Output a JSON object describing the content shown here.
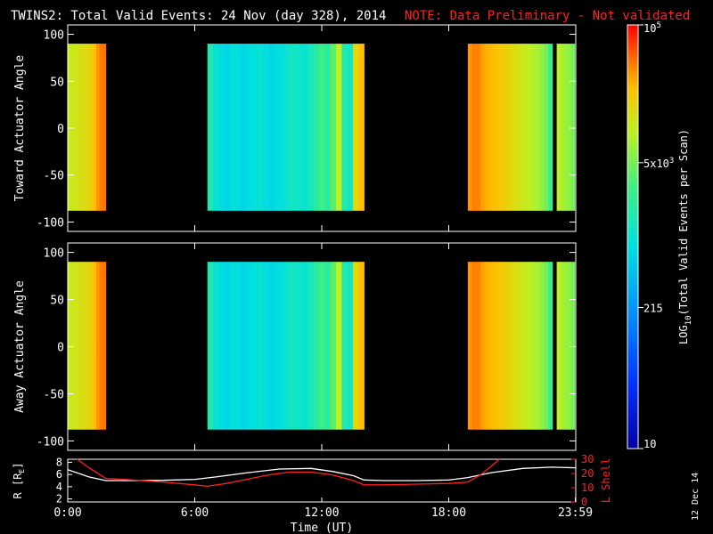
{
  "header": {
    "title": "TWINS2: Total Valid Events: 24 Nov (day 328), 2014",
    "note": "NOTE: Data Preliminary - Not validated",
    "note_color": "#ff2020"
  },
  "chart_data": [
    {
      "type": "heatmap",
      "ylabel": "Toward Actuator Angle",
      "ylim": [
        -110,
        110
      ],
      "yticks": [
        "100",
        "50",
        "0",
        "-50",
        "-100"
      ],
      "ytick_values": [
        100,
        50,
        0,
        -50,
        -100
      ],
      "xlim": [
        0,
        24
      ],
      "angle_range": [
        -88,
        90
      ],
      "data_segments": [
        {
          "start_hr": 0.0,
          "end_hr": 1.8,
          "profile": [
            4.05,
            4.05,
            4.08,
            4.12,
            4.15,
            4.18,
            4.22,
            4.3,
            4.4,
            4.55,
            4.62,
            4.65
          ]
        },
        {
          "start_hr": 6.6,
          "end_hr": 14.0,
          "profile": [
            3.2,
            3.0,
            2.9,
            2.85,
            2.95,
            2.9,
            2.85,
            2.9,
            2.95,
            3.0,
            2.9,
            2.85,
            2.9,
            2.95,
            3.05,
            3.1,
            3.05,
            3.0,
            3.15,
            3.3,
            3.45,
            3.3,
            3.6,
            4.0,
            3.2,
            3.1,
            4.2,
            4.4
          ]
        },
        {
          "start_hr": 18.9,
          "end_hr": 22.9,
          "profile": [
            4.55,
            4.62,
            4.6,
            4.5,
            4.45,
            4.42,
            4.38,
            4.34,
            4.3,
            4.25,
            4.2,
            4.15,
            4.1,
            4.05,
            4.0,
            3.95,
            3.9,
            3.8,
            3.7,
            3.4
          ]
        },
        {
          "start_hr": 23.1,
          "end_hr": 23.95,
          "profile": [
            4.0,
            3.9,
            3.85,
            3.8,
            3.7
          ]
        }
      ]
    },
    {
      "type": "heatmap",
      "ylabel": "Away Actuator Angle",
      "ylim": [
        -110,
        110
      ],
      "yticks": [
        "100",
        "50",
        "0",
        "-50",
        "-100"
      ],
      "ytick_values": [
        100,
        50,
        0,
        -50,
        -100
      ],
      "xlim": [
        0,
        24
      ],
      "angle_range": [
        -88,
        90
      ],
      "data_segments": [
        {
          "start_hr": 0.0,
          "end_hr": 1.8,
          "profile": [
            4.05,
            4.05,
            4.08,
            4.12,
            4.15,
            4.18,
            4.22,
            4.3,
            4.4,
            4.55,
            4.62,
            4.65
          ]
        },
        {
          "start_hr": 6.6,
          "end_hr": 14.0,
          "profile": [
            3.2,
            3.0,
            2.9,
            2.85,
            2.95,
            2.9,
            2.85,
            2.9,
            2.95,
            3.0,
            2.9,
            2.85,
            2.9,
            2.95,
            3.05,
            3.1,
            3.05,
            3.0,
            3.15,
            3.3,
            3.45,
            3.3,
            3.6,
            4.0,
            3.2,
            3.1,
            4.2,
            4.4
          ]
        },
        {
          "start_hr": 18.9,
          "end_hr": 22.9,
          "profile": [
            4.55,
            4.62,
            4.6,
            4.5,
            4.45,
            4.42,
            4.38,
            4.34,
            4.3,
            4.25,
            4.2,
            4.15,
            4.1,
            4.05,
            4.0,
            3.95,
            3.9,
            3.8,
            3.7,
            3.4
          ]
        },
        {
          "start_hr": 23.1,
          "end_hr": 23.95,
          "profile": [
            4.0,
            3.9,
            3.85,
            3.8,
            3.7
          ]
        }
      ]
    },
    {
      "type": "line",
      "ylabel_left": "R [R",
      "ylabel_left_sub": "E",
      "ylabel_left_close": "]",
      "ylabel_right": "L Shell",
      "right_color": "#ff2020",
      "xlabel": "Time (UT)",
      "xticks": [
        "0:00",
        "6:00",
        "12:00",
        "18:00",
        "23:59"
      ],
      "xtick_values": [
        0,
        6,
        12,
        18,
        23.98
      ],
      "left_ylim": [
        1.5,
        8.5
      ],
      "left_yticks": [
        "8",
        "6",
        "4",
        "2"
      ],
      "left_ytick_values": [
        8,
        6,
        4,
        2
      ],
      "right_ylim": [
        0,
        30
      ],
      "right_yticks": [
        "30",
        "20",
        "10",
        "0"
      ],
      "right_ytick_values": [
        30,
        20,
        10,
        0
      ],
      "series": [
        {
          "axis": "left",
          "color": "#ffffff",
          "x": [
            0.0,
            0.5,
            1.0,
            1.8,
            3.0,
            4.5,
            6.0,
            7.0,
            8.5,
            10.0,
            11.5,
            12.5,
            13.5,
            14.0,
            15.0,
            16.5,
            18.0,
            18.9,
            20.0,
            21.5,
            22.9,
            23.98
          ],
          "y": [
            6.8,
            6.2,
            5.6,
            5.0,
            5.0,
            5.05,
            5.2,
            5.6,
            6.3,
            6.9,
            7.0,
            6.5,
            5.8,
            5.1,
            5.0,
            5.0,
            5.1,
            5.5,
            6.3,
            7.0,
            7.2,
            7.1
          ]
        },
        {
          "axis": "right",
          "color": "#ff2020",
          "x": [
            0.45,
            1.0,
            1.8,
            3.0,
            4.5,
            6.0,
            6.6,
            7.5,
            8.5,
            9.5,
            10.5,
            11.5,
            12.5,
            13.5,
            14.0,
            15.0,
            16.5,
            18.0,
            18.9,
            19.5,
            20.0,
            20.4
          ],
          "y": [
            30,
            24,
            16.5,
            15.5,
            14,
            12,
            11,
            13,
            16,
            19,
            21,
            21,
            19,
            15,
            12,
            12,
            12.5,
            13,
            14,
            19,
            25,
            30
          ]
        }
      ]
    }
  ],
  "colorbar": {
    "label_main": "LOG",
    "label_sub": "10",
    "label_rest": "(Total Valid Events per Scan)",
    "log_range": [
      1,
      5
    ],
    "ticks": [
      {
        "base": "10",
        "exp": "5",
        "log": 5
      },
      {
        "base": "5x10",
        "exp": "3",
        "log": 3.699
      },
      {
        "base": "215",
        "exp": "",
        "log": 2.332
      },
      {
        "base": "10",
        "exp": "",
        "log": 1
      }
    ]
  },
  "footer_date": "12 Dec 14"
}
